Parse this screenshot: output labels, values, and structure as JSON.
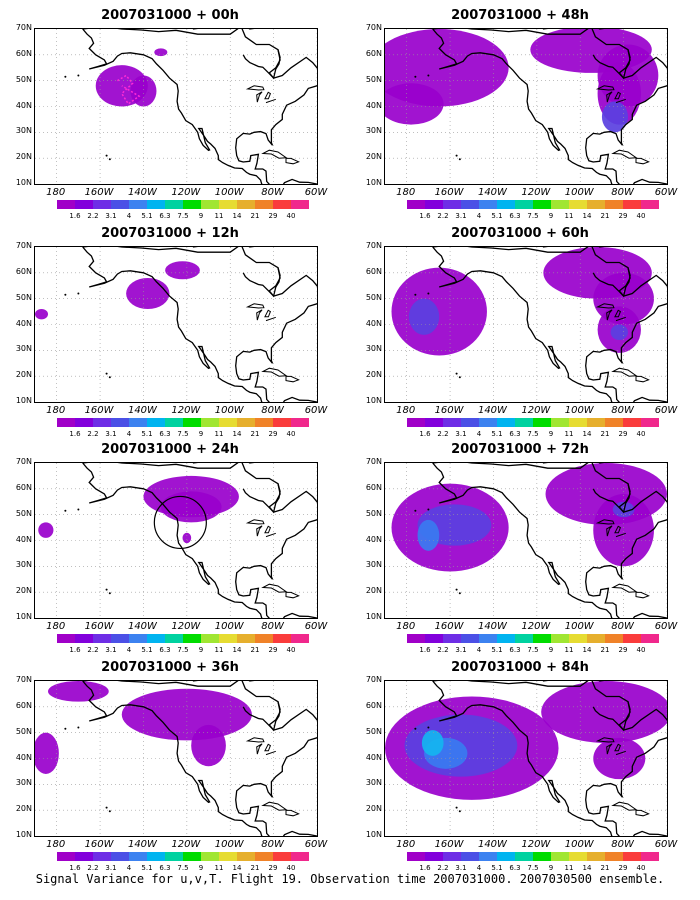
{
  "panels": [
    {
      "title": "2007031000 + 00h"
    },
    {
      "title": "2007031000 + 48h"
    },
    {
      "title": "2007031000 + 12h"
    },
    {
      "title": "2007031000 + 60h"
    },
    {
      "title": "2007031000 + 24h"
    },
    {
      "title": "2007031000 + 72h"
    },
    {
      "title": "2007031000 + 36h"
    },
    {
      "title": "2007031000 + 84h"
    }
  ],
  "map": {
    "lat_labels": [
      "70N",
      "60N",
      "50N",
      "40N",
      "30N",
      "20N",
      "10N"
    ],
    "lon_labels": [
      "180",
      "160W",
      "140W",
      "120W",
      "100W",
      "80W",
      "60W"
    ],
    "lat_range": [
      10,
      70
    ],
    "lon_range": [
      -190,
      -60
    ],
    "gridlines": "dotted"
  },
  "colorbar": {
    "labels": [
      "1.6",
      "2.2",
      "3.1",
      "4",
      "5.1",
      "6.3",
      "7.5",
      "9",
      "11",
      "14",
      "21",
      "29",
      "40"
    ],
    "colors": [
      "#a000c8",
      "#8200dc",
      "#6e2ee6",
      "#4b50e6",
      "#3c82f0",
      "#00b4f0",
      "#00d2a0",
      "#00dc00",
      "#a0e632",
      "#e6dc32",
      "#e6af2d",
      "#f08228",
      "#fa3c3c",
      "#f0288c"
    ]
  },
  "caption": "Signal Variance for u,v,T. Flight 19. Observation time 2007031000. 2007030500 ensemble.",
  "theme": {
    "signal_low": "#9900cc",
    "signal_mid": "#5a40e0",
    "signal_high": "#3a7bf0",
    "signal_peak": "#15b5f0"
  }
}
